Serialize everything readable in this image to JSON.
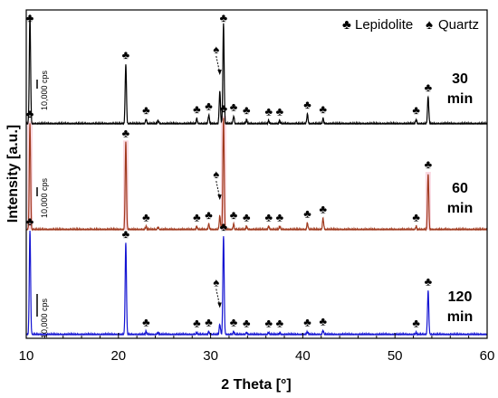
{
  "chart_data": {
    "type": "line",
    "xlabel": "2 Theta [°]",
    "ylabel": "Intensity [a.u.]",
    "xlim": [
      10,
      60
    ],
    "xticks": [
      "10",
      "20",
      "30",
      "40",
      "50",
      "60"
    ],
    "grid": false,
    "legend": {
      "placement": "top-right",
      "entries": [
        {
          "symbol": "♣",
          "label": "Lepidolite"
        },
        {
          "symbol": "♠",
          "label": "Quartz"
        }
      ]
    },
    "scale_bar_label": "10,000 cps",
    "lepidolite_peaks_2theta": [
      10.4,
      20.8,
      23.0,
      28.5,
      29.8,
      31.4,
      32.5,
      33.9,
      36.3,
      37.5,
      40.5,
      42.2,
      52.3,
      53.6
    ],
    "quartz_peak_2theta": 31.0,
    "series": [
      {
        "name": "30 min",
        "time_label": [
          "30",
          "min"
        ],
        "color": "#000000",
        "fill_color": "",
        "peaks": [
          [
            10.4,
            1.0
          ],
          [
            20.8,
            0.55
          ],
          [
            23.0,
            0.04
          ],
          [
            24.3,
            0.03
          ],
          [
            28.5,
            0.05
          ],
          [
            29.8,
            0.08
          ],
          [
            31.0,
            0.3
          ],
          [
            31.4,
            0.92
          ],
          [
            32.5,
            0.07
          ],
          [
            33.9,
            0.04
          ],
          [
            36.3,
            0.03
          ],
          [
            37.5,
            0.03
          ],
          [
            40.5,
            0.09
          ],
          [
            42.2,
            0.05
          ],
          [
            52.3,
            0.04
          ],
          [
            53.6,
            0.25
          ]
        ]
      },
      {
        "name": "60 min",
        "time_label": [
          "60",
          "min"
        ],
        "color": "#a0391d",
        "fill_color": "#f8c9d6",
        "peaks": [
          [
            10.4,
            0.95
          ],
          [
            20.8,
            0.78
          ],
          [
            23.0,
            0.03
          ],
          [
            24.3,
            0.02
          ],
          [
            28.5,
            0.03
          ],
          [
            29.8,
            0.05
          ],
          [
            31.0,
            0.12
          ],
          [
            31.4,
            1.0
          ],
          [
            32.5,
            0.05
          ],
          [
            33.9,
            0.03
          ],
          [
            36.3,
            0.03
          ],
          [
            37.5,
            0.03
          ],
          [
            40.5,
            0.06
          ],
          [
            42.2,
            0.1
          ],
          [
            52.3,
            0.03
          ],
          [
            53.6,
            0.5
          ]
        ]
      },
      {
        "name": "120 min",
        "time_label": [
          "120",
          "min"
        ],
        "color": "#1414d2",
        "fill_color": "",
        "peaks": [
          [
            10.4,
            1.0
          ],
          [
            20.8,
            0.88
          ],
          [
            23.0,
            0.03
          ],
          [
            24.3,
            0.02
          ],
          [
            28.5,
            0.02
          ],
          [
            29.8,
            0.03
          ],
          [
            31.0,
            0.1
          ],
          [
            31.4,
            0.95
          ],
          [
            32.5,
            0.03
          ],
          [
            33.9,
            0.02
          ],
          [
            36.3,
            0.02
          ],
          [
            37.5,
            0.02
          ],
          [
            40.5,
            0.03
          ],
          [
            42.2,
            0.04
          ],
          [
            52.3,
            0.02
          ],
          [
            53.6,
            0.42
          ]
        ]
      }
    ]
  }
}
